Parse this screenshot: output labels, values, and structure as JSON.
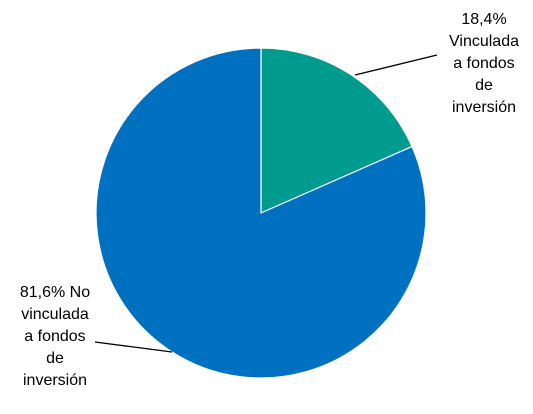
{
  "chart_data": {
    "type": "pie",
    "slices": [
      {
        "value": 18.4,
        "color": "#009B8F",
        "label_lines": [
          "18,4%",
          "Vinculada",
          "a fondos",
          "de",
          "inversión"
        ]
      },
      {
        "value": 81.6,
        "color": "#0070C0",
        "label_lines": [
          "81,6% No",
          "vinculada",
          "a fondos",
          "de",
          "inversión"
        ]
      }
    ],
    "start_angle_deg": 0,
    "direction": "clockwise",
    "legend": "none"
  }
}
